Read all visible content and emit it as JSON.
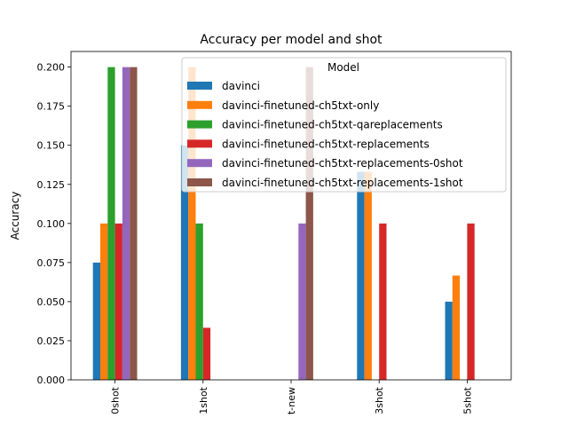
{
  "chart_data": {
    "type": "bar",
    "title": "Accuracy per model and shot",
    "xlabel": "",
    "ylabel": "Accuracy",
    "ylim": [
      0,
      0.21
    ],
    "yticks": [
      "0.000",
      "0.025",
      "0.050",
      "0.075",
      "0.100",
      "0.125",
      "0.150",
      "0.175",
      "0.200"
    ],
    "categories": [
      "0shot",
      "1shot",
      "t-new",
      "3shot",
      "5shot"
    ],
    "legend": {
      "title": "Model",
      "placement": "top-right"
    },
    "grid": false,
    "series": [
      {
        "name": "davinci",
        "color": "#1f77b4",
        "values": [
          0.075,
          0.15,
          null,
          0.133,
          0.05
        ]
      },
      {
        "name": "davinci-finetuned-ch5txt-only",
        "color": "#ff7f0e",
        "values": [
          0.1,
          0.2,
          null,
          0.133,
          0.0667
        ]
      },
      {
        "name": "davinci-finetuned-ch5txt-qareplacements",
        "color": "#2ca02c",
        "values": [
          0.2,
          0.1,
          null,
          null,
          null
        ]
      },
      {
        "name": "davinci-finetuned-ch5txt-replacements",
        "color": "#d62728",
        "values": [
          0.1,
          0.0333,
          null,
          0.1,
          0.1
        ]
      },
      {
        "name": "davinci-finetuned-ch5txt-replacements-0shot",
        "color": "#9467bd",
        "values": [
          0.2,
          null,
          0.1,
          null,
          null
        ]
      },
      {
        "name": "davinci-finetuned-ch5txt-replacements-1shot",
        "color": "#8c564b",
        "values": [
          0.2,
          null,
          0.2,
          null,
          null
        ]
      }
    ]
  }
}
